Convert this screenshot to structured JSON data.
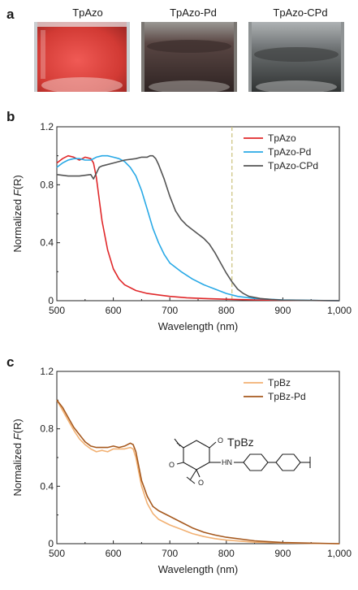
{
  "panels": {
    "a": "a",
    "b": "b",
    "c": "c"
  },
  "photos": [
    {
      "label": "TpAzo",
      "color": "#d8453f"
    },
    {
      "label": "TpAzo-Pd",
      "color": "#3a2e2c"
    },
    {
      "label": "TpAzo-CPd",
      "color": "#3d4040"
    }
  ],
  "chart_data": [
    {
      "type": "line",
      "title": "",
      "xlabel": "Wavelength (nm)",
      "ylabel_prefix": "Normalized ",
      "ylabel_italic": "F",
      "ylabel_suffix": "(R)",
      "xlim": [
        500,
        1000
      ],
      "ylim": [
        0,
        1.2
      ],
      "xticks": [
        500,
        600,
        700,
        800,
        900,
        1000
      ],
      "xtick_labels": [
        "500",
        "600",
        "700",
        "800",
        "900",
        "1,000"
      ],
      "yticks": [
        0,
        0.4,
        0.8,
        1.2
      ],
      "ytick_labels": [
        "0",
        "0.4",
        "0.8",
        "1.2"
      ],
      "vline": {
        "x": 810,
        "color": "#c9c07a"
      },
      "legend_position": "top-right",
      "series": [
        {
          "name": "TpAzo",
          "color": "#e0282a",
          "x": [
            500,
            510,
            520,
            530,
            540,
            550,
            560,
            565,
            570,
            575,
            580,
            590,
            600,
            610,
            620,
            640,
            660,
            680,
            700,
            730,
            760,
            800,
            850,
            900,
            1000
          ],
          "y": [
            0.95,
            0.98,
            1.0,
            0.99,
            0.97,
            0.99,
            0.98,
            0.95,
            0.85,
            0.7,
            0.55,
            0.35,
            0.22,
            0.15,
            0.11,
            0.07,
            0.05,
            0.04,
            0.03,
            0.02,
            0.015,
            0.01,
            0.005,
            0.003,
            0.0
          ]
        },
        {
          "name": "TpAzo-Pd",
          "color": "#29a9e6",
          "x": [
            500,
            510,
            520,
            530,
            540,
            550,
            560,
            570,
            580,
            590,
            600,
            610,
            620,
            630,
            640,
            650,
            660,
            670,
            680,
            690,
            700,
            720,
            740,
            760,
            780,
            800,
            820,
            850,
            900,
            1000
          ],
          "y": [
            0.92,
            0.95,
            0.97,
            0.98,
            0.98,
            0.97,
            0.97,
            0.99,
            1.0,
            1.0,
            0.99,
            0.98,
            0.96,
            0.92,
            0.86,
            0.76,
            0.63,
            0.5,
            0.4,
            0.32,
            0.26,
            0.2,
            0.15,
            0.11,
            0.08,
            0.05,
            0.03,
            0.015,
            0.005,
            0.0
          ]
        },
        {
          "name": "TpAzo-CPd",
          "color": "#545454",
          "x": [
            500,
            520,
            540,
            560,
            565,
            570,
            575,
            580,
            600,
            620,
            640,
            650,
            660,
            665,
            670,
            675,
            680,
            690,
            700,
            710,
            720,
            730,
            740,
            750,
            760,
            770,
            780,
            790,
            800,
            810,
            820,
            830,
            840,
            860,
            880,
            900,
            1000
          ],
          "y": [
            0.87,
            0.86,
            0.86,
            0.87,
            0.84,
            0.88,
            0.92,
            0.93,
            0.95,
            0.97,
            0.98,
            0.99,
            0.99,
            1.0,
            1.0,
            0.98,
            0.94,
            0.84,
            0.72,
            0.62,
            0.56,
            0.52,
            0.49,
            0.46,
            0.43,
            0.39,
            0.33,
            0.26,
            0.19,
            0.13,
            0.08,
            0.05,
            0.03,
            0.015,
            0.008,
            0.004,
            0.0
          ]
        }
      ]
    },
    {
      "type": "line",
      "title": "",
      "xlabel": "Wavelength (nm)",
      "ylabel_prefix": "Normalized ",
      "ylabel_italic": "F",
      "ylabel_suffix": "(R)",
      "xlim": [
        500,
        1000
      ],
      "ylim": [
        0,
        1.2
      ],
      "xticks": [
        500,
        600,
        700,
        800,
        900,
        1000
      ],
      "xtick_labels": [
        "500",
        "600",
        "700",
        "800",
        "900",
        "1,000"
      ],
      "yticks": [
        0,
        0.4,
        0.8,
        1.2
      ],
      "ytick_labels": [
        "0",
        "0.4",
        "0.8",
        "1.2"
      ],
      "legend_position": "top-right",
      "inset_label": "TpBz",
      "inset_atom_o": "O",
      "inset_atom_hn": "HN",
      "series": [
        {
          "name": "TpBz",
          "color": "#f2b173",
          "x": [
            500,
            510,
            520,
            530,
            540,
            550,
            560,
            570,
            580,
            590,
            600,
            610,
            620,
            630,
            635,
            640,
            645,
            650,
            660,
            670,
            680,
            690,
            700,
            720,
            740,
            760,
            780,
            800,
            850,
            900,
            1000
          ],
          "y": [
            1.0,
            0.93,
            0.86,
            0.79,
            0.73,
            0.69,
            0.66,
            0.64,
            0.65,
            0.64,
            0.66,
            0.66,
            0.66,
            0.67,
            0.66,
            0.6,
            0.5,
            0.4,
            0.28,
            0.21,
            0.17,
            0.15,
            0.13,
            0.1,
            0.07,
            0.05,
            0.035,
            0.025,
            0.01,
            0.005,
            0.0
          ]
        },
        {
          "name": "TpBz-Pd",
          "color": "#a6591e",
          "x": [
            500,
            510,
            520,
            530,
            540,
            550,
            560,
            570,
            580,
            590,
            600,
            610,
            620,
            630,
            635,
            640,
            645,
            650,
            660,
            670,
            680,
            690,
            700,
            720,
            740,
            760,
            780,
            800,
            850,
            900,
            1000
          ],
          "y": [
            1.0,
            0.95,
            0.88,
            0.81,
            0.76,
            0.71,
            0.68,
            0.67,
            0.67,
            0.67,
            0.68,
            0.67,
            0.68,
            0.7,
            0.69,
            0.64,
            0.54,
            0.44,
            0.33,
            0.26,
            0.23,
            0.21,
            0.19,
            0.15,
            0.11,
            0.08,
            0.06,
            0.045,
            0.02,
            0.008,
            0.0
          ]
        }
      ]
    }
  ]
}
